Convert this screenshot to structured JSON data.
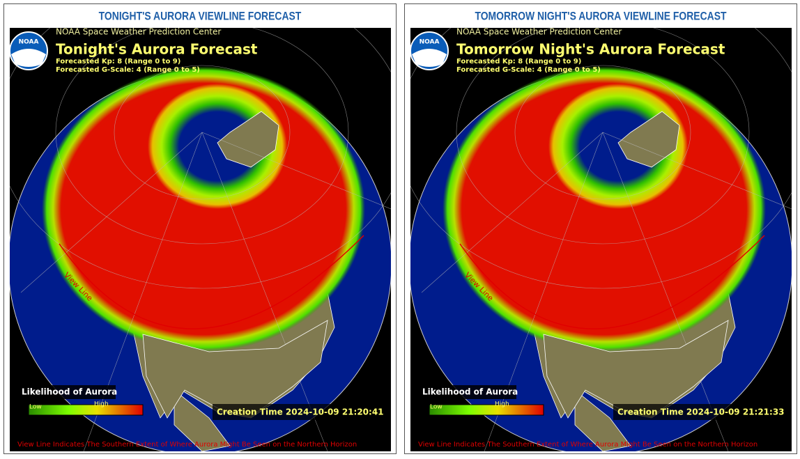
{
  "panels": [
    {
      "heading": "TONIGHT'S AURORA VIEWLINE FORECAST",
      "source": "NOAA Space Weather Prediction Center",
      "title": "Tonight's Aurora Forecast",
      "kp": "Forecasted Kp: 8 (Range 0 to 9)",
      "gscale": "Forecasted G-Scale: 4 (Range 0 to 5)",
      "logo": "NOAA",
      "legend_title": "Likelihood of Aurora",
      "legend_low": "Low",
      "legend_high": "High",
      "creation_time": "Creation Time 2024-10-09 21:20:41",
      "view_line_label": "View Line",
      "footnote": "View Line Indicates The Southern Extent of Where Aurora Might Be Seen on the Northern Horizon"
    },
    {
      "heading": "TOMORROW NIGHT'S AURORA VIEWLINE FORECAST",
      "source": "NOAA Space Weather Prediction Center",
      "title": "Tomorrow Night's Aurora Forecast",
      "kp": "Forecasted Kp: 8 (Range 0 to 9)",
      "gscale": "Forecasted G-Scale: 4 (Range 0 to 5)",
      "logo": "NOAA",
      "legend_title": "Likelihood of Aurora",
      "legend_low": "Low",
      "legend_high": "High",
      "creation_time": "Creation Time 2024-10-09 21:21:33",
      "view_line_label": "View Line",
      "footnote": "View Line Indicates The Southern Extent of Where Aurora Might Be Seen on the Northern Horizon"
    }
  ]
}
